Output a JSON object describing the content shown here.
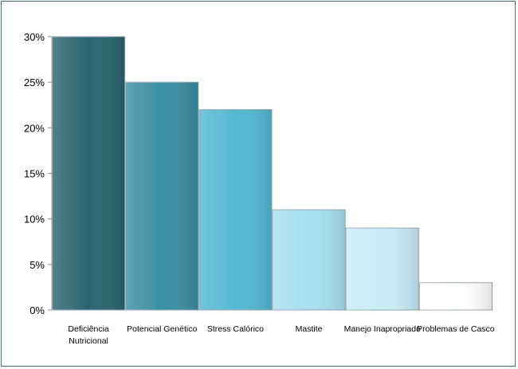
{
  "chart_data": {
    "type": "bar",
    "title": "",
    "xlabel": "",
    "ylabel": "",
    "categories": [
      "Deficiência Nutricional",
      "Potencial Genético",
      "Stress Calórico",
      "Mastite",
      "Manejo Inapropriado",
      "Problemas de Casco"
    ],
    "category_label_lines": [
      [
        "Deficiência",
        "Nutricional"
      ],
      [
        "Potencial Genético"
      ],
      [
        "Stress Calórico"
      ],
      [
        "Mastite"
      ],
      [
        "Manejo Inapropriado"
      ],
      [
        "Problemas de Casco"
      ]
    ],
    "values": [
      30,
      25,
      22,
      11,
      9,
      3
    ],
    "bar_colors": [
      "#2b6470",
      "#3a8fa3",
      "#55b8d3",
      "#a8dff0",
      "#c7ecf7",
      "#ffffff"
    ],
    "ylim": [
      0,
      30
    ],
    "yticks": [
      0,
      5,
      10,
      15,
      20,
      25,
      30
    ],
    "ytick_labels": [
      "0%",
      "5%",
      "10%",
      "15%",
      "20%",
      "25%",
      "30%"
    ],
    "grid": false,
    "legend": "none"
  }
}
